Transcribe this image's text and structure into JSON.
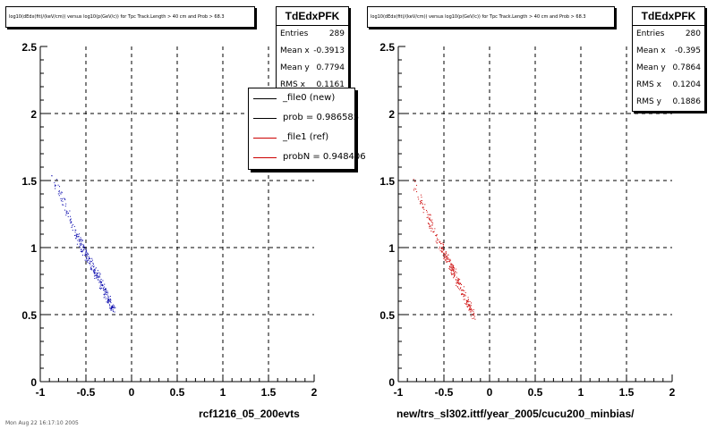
{
  "panels": [
    {
      "id": "left",
      "title": "log10(dEdx(fit)/(keV/cm)) versus log10(p(GeV/c)) for Tpc Track.Length > 40 cm and Prob > 68.3",
      "stats": {
        "name": "TdEdxPFK",
        "rows": [
          {
            "label": "Entries",
            "value": "289"
          },
          {
            "label": "Mean x",
            "value": "-0.3913"
          },
          {
            "label": "Mean y",
            "value": "0.7794"
          },
          {
            "label": "RMS x",
            "value": "0.1161"
          }
        ]
      },
      "legend": [
        {
          "label": "_file0 (new)",
          "color": "#000000"
        },
        {
          "label": "prob = 0.986585",
          "color": "#000000"
        },
        {
          "label": "_file1 (ref)",
          "color": "#cc0000"
        },
        {
          "label": "probN = 0.948406",
          "color": "#cc0000"
        }
      ],
      "xcaption": "rcf1216_05_200evts",
      "color": "#0000aa"
    },
    {
      "id": "right",
      "title": "log10(dEdx(fit)/(keV/cm)) versus log10(p(GeV/c)) for Tpc Track.Length > 40 cm and Prob > 68.3",
      "stats": {
        "name": "TdEdxPFK",
        "rows": [
          {
            "label": "Entries",
            "value": "280"
          },
          {
            "label": "Mean x",
            "value": "-0.395"
          },
          {
            "label": "Mean y",
            "value": "0.7864"
          },
          {
            "label": "RMS x",
            "value": "0.1204"
          },
          {
            "label": "RMS y",
            "value": "0.1886"
          }
        ]
      },
      "legend": [],
      "xcaption": "new/trs_sl302.ittf/year_2005/cucu200_minbias/",
      "color": "#cc0000"
    }
  ],
  "chart_data": [
    {
      "type": "scatter",
      "xlim": [
        -1,
        2
      ],
      "ylim": [
        0,
        2.5
      ],
      "xticks": [
        "-1",
        "-0.5",
        "0",
        "0.5",
        "1",
        "1.5",
        "2"
      ],
      "yticks": [
        "0",
        "0.5",
        "1",
        "1.5",
        "2",
        "2.5"
      ],
      "grid": true,
      "trend": [
        {
          "x": -0.88,
          "y": 1.57
        },
        {
          "x": -0.81,
          "y": 1.45
        },
        {
          "x": -0.72,
          "y": 1.3
        },
        {
          "x": -0.6,
          "y": 1.08
        },
        {
          "x": -0.5,
          "y": 0.95
        },
        {
          "x": -0.4,
          "y": 0.82
        },
        {
          "x": -0.3,
          "y": 0.68
        },
        {
          "x": -0.2,
          "y": 0.52
        }
      ]
    },
    {
      "type": "scatter",
      "xlim": [
        -1,
        2
      ],
      "ylim": [
        0,
        2.5
      ],
      "xticks": [
        "-1",
        "-0.5",
        "0",
        "0.5",
        "1",
        "1.5",
        "2"
      ],
      "yticks": [
        "0",
        "0.5",
        "1",
        "1.5",
        "2",
        "2.5"
      ],
      "grid": true,
      "trend": [
        {
          "x": -0.89,
          "y": 1.58
        },
        {
          "x": -0.82,
          "y": 1.46
        },
        {
          "x": -0.72,
          "y": 1.3
        },
        {
          "x": -0.6,
          "y": 1.1
        },
        {
          "x": -0.5,
          "y": 0.96
        },
        {
          "x": -0.4,
          "y": 0.82
        },
        {
          "x": -0.3,
          "y": 0.67
        },
        {
          "x": -0.17,
          "y": 0.49
        }
      ]
    }
  ],
  "footer": "Mon Aug 22 16:17:10 2005"
}
